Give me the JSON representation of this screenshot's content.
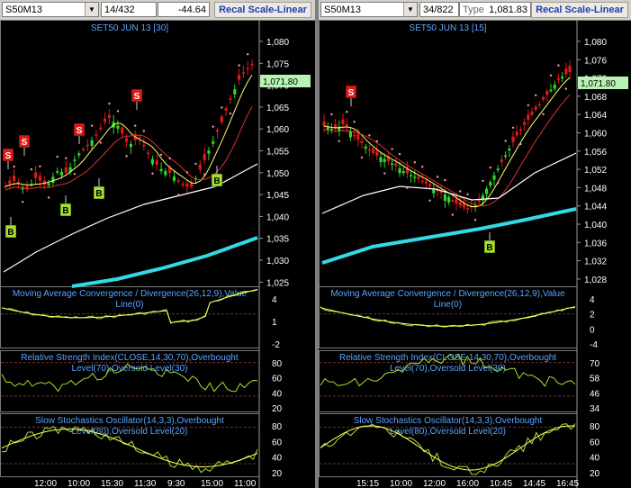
{
  "panes": [
    {
      "symbol": "S50M13",
      "counter": "14/432",
      "change": "-44.64",
      "recal_label": "Recal Scale-Linear",
      "chart_title": "SET50 JUN 13   [30]",
      "last_price": "1,071.80",
      "price_ticks": [
        "1,080",
        "1,075",
        "1,070",
        "1,065",
        "1,060",
        "1,055",
        "1,050",
        "1,045",
        "1,040",
        "1,035",
        "1,030",
        "1,025"
      ],
      "macd_title": "Moving Average Convergence / Divergence(26,12,9),Value",
      "macd_title2": "Line(0)",
      "macd_ticks": [
        "4",
        "1",
        "-2"
      ],
      "rsi_title": "Relative Strength Index(CLOSE,14,30,70),Overbought",
      "rsi_title2": "Level(70),Oversold Level(30)",
      "rsi_ticks": [
        "80",
        "60",
        "40",
        "20"
      ],
      "sto_title": "Slow Stochastics Oscillator(14,3,3),Overbought",
      "sto_title2": "Level(80),Oversold Level(20)",
      "sto_ticks": [
        "80",
        "60",
        "40",
        "20"
      ],
      "time_ticks": [
        "12:00",
        "10:00",
        "15:30",
        "11:30",
        "9:30",
        "15:00",
        "11:00"
      ],
      "signals": [
        {
          "type": "S",
          "label": "S"
        },
        {
          "type": "S",
          "label": "S"
        },
        {
          "type": "S",
          "label": "S"
        },
        {
          "type": "S",
          "label": "S"
        },
        {
          "type": "B",
          "label": "B"
        },
        {
          "type": "B",
          "label": "B"
        },
        {
          "type": "B",
          "label": "B"
        },
        {
          "type": "B",
          "label": "B"
        }
      ]
    },
    {
      "symbol": "S50M13",
      "counter": "34/822",
      "type_label": "Type",
      "value": "1,081.83",
      "recal_label": "Recal Scale-Linear",
      "chart_title": "SET50 JUN 13   [15]",
      "last_price": "1,071.80",
      "price_ticks": [
        "1,080",
        "1,076",
        "1,072",
        "1,068",
        "1,064",
        "1,060",
        "1,056",
        "1,052",
        "1,048",
        "1,044",
        "1,040",
        "1,036",
        "1,032",
        "1,028"
      ],
      "macd_title": "Moving Average Convergence / Divergence(26,12,9),Value",
      "macd_title2": "Line(0)",
      "macd_ticks": [
        "4",
        "2",
        "0",
        "-4"
      ],
      "rsi_title": "Relative Strength Index(CLOSE,14,30,70),Overbought",
      "rsi_title2": "Level(70),Oversold Level(30)",
      "rsi_ticks": [
        "70",
        "58",
        "46",
        "34"
      ],
      "sto_title": "Slow Stochastics Oscillator(14,3,3),Overbought",
      "sto_title2": "Level(80),Oversold Level(20)",
      "sto_ticks": [
        "80",
        "60",
        "40",
        "20"
      ],
      "time_ticks": [
        "15:15",
        "10:00",
        "12:00",
        "16:00",
        "10:45",
        "14:45",
        "16:45"
      ],
      "signals": [
        {
          "type": "S",
          "label": "S"
        },
        {
          "type": "B",
          "label": "B"
        }
      ]
    }
  ],
  "colors": {
    "background": "#000000",
    "up_candle": "#2bd82b",
    "down_candle": "#e01818",
    "ma_fast": "#ffff66",
    "ma_mid": "#e03030",
    "ma_slow": "#ffffff",
    "ma_long": "#33d9e6",
    "sar": "#ff9a9a",
    "indicator": "#a6e12f",
    "grid": "#6e3030",
    "axis_text": "#ffffff",
    "title_text": "#5aa3ff",
    "sell_box": "#e01818",
    "buy_box": "#a6e12f",
    "price_tag": "#b7f3b3"
  }
}
